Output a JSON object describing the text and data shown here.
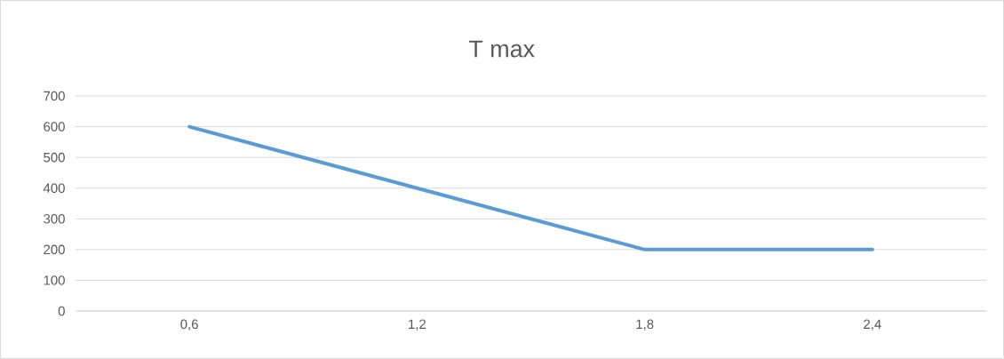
{
  "chart_data": {
    "type": "line",
    "title": "T max",
    "categories": [
      "0,6",
      "1,2",
      "1,8",
      "2,4"
    ],
    "series": [
      {
        "color": "#5b9bd5",
        "values": [
          600,
          400,
          200,
          200
        ]
      }
    ],
    "ylim": [
      0,
      700
    ],
    "yticks": [
      0,
      100,
      200,
      300,
      400,
      500,
      600,
      700
    ],
    "grid": "y",
    "marker": "none",
    "line_style": "solid"
  }
}
